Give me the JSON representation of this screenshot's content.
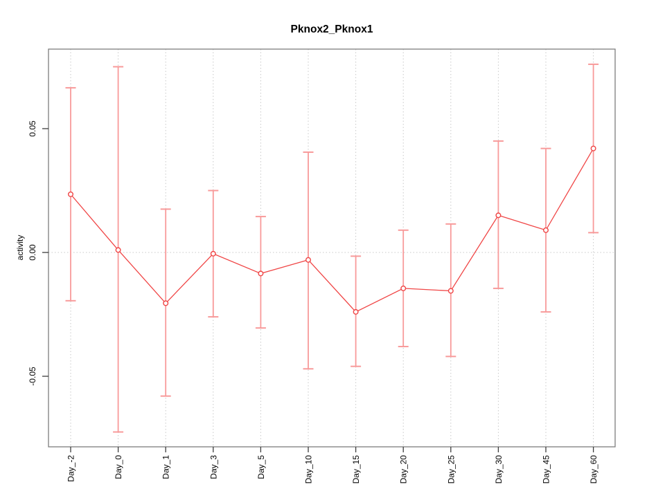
{
  "chart_data": {
    "type": "line",
    "title": "Pknox2_Pknox1",
    "xlabel": "",
    "ylabel": "activity",
    "categories": [
      "Day_-2",
      "Day_0",
      "Day_1",
      "Day_3",
      "Day_5",
      "Day_10",
      "Day_15",
      "Day_20",
      "Day_25",
      "Day_30",
      "Day_45",
      "Day_60"
    ],
    "series": [
      {
        "name": "Pknox2_Pknox1",
        "values": [
          0.0235,
          0.001,
          -0.0205,
          -0.0005,
          -0.0085,
          -0.003,
          -0.024,
          -0.0145,
          -0.0155,
          0.015,
          0.009,
          0.042
        ],
        "error_high": [
          0.0665,
          0.075,
          0.0175,
          0.025,
          0.0145,
          0.0405,
          -0.0015,
          0.009,
          0.0115,
          0.045,
          0.042,
          0.076
        ],
        "error_low": [
          -0.0195,
          -0.0725,
          -0.058,
          -0.026,
          -0.0305,
          -0.047,
          -0.046,
          -0.038,
          -0.042,
          -0.0145,
          -0.024,
          0.008
        ]
      }
    ],
    "y_ticks": [
      0.05,
      0,
      -0.05
    ],
    "y_tick_labels": [
      "0.05",
      "0.00",
      "-0.05"
    ],
    "ylim": [
      -0.0785,
      0.0821
    ],
    "marker": "open-circle",
    "legend": "none",
    "grid": {
      "vertical": "dotted line at each category",
      "horizontal": "dotted line at zero"
    },
    "tick_label_rotation_deg": 90,
    "colors": {
      "series_line": "#f04545",
      "error_bar": "#f89a9a",
      "grid_line": "#c8c8c8",
      "axis_box": "#7d7d7d",
      "tick": "#3c3c3c",
      "text": "#000000"
    }
  }
}
